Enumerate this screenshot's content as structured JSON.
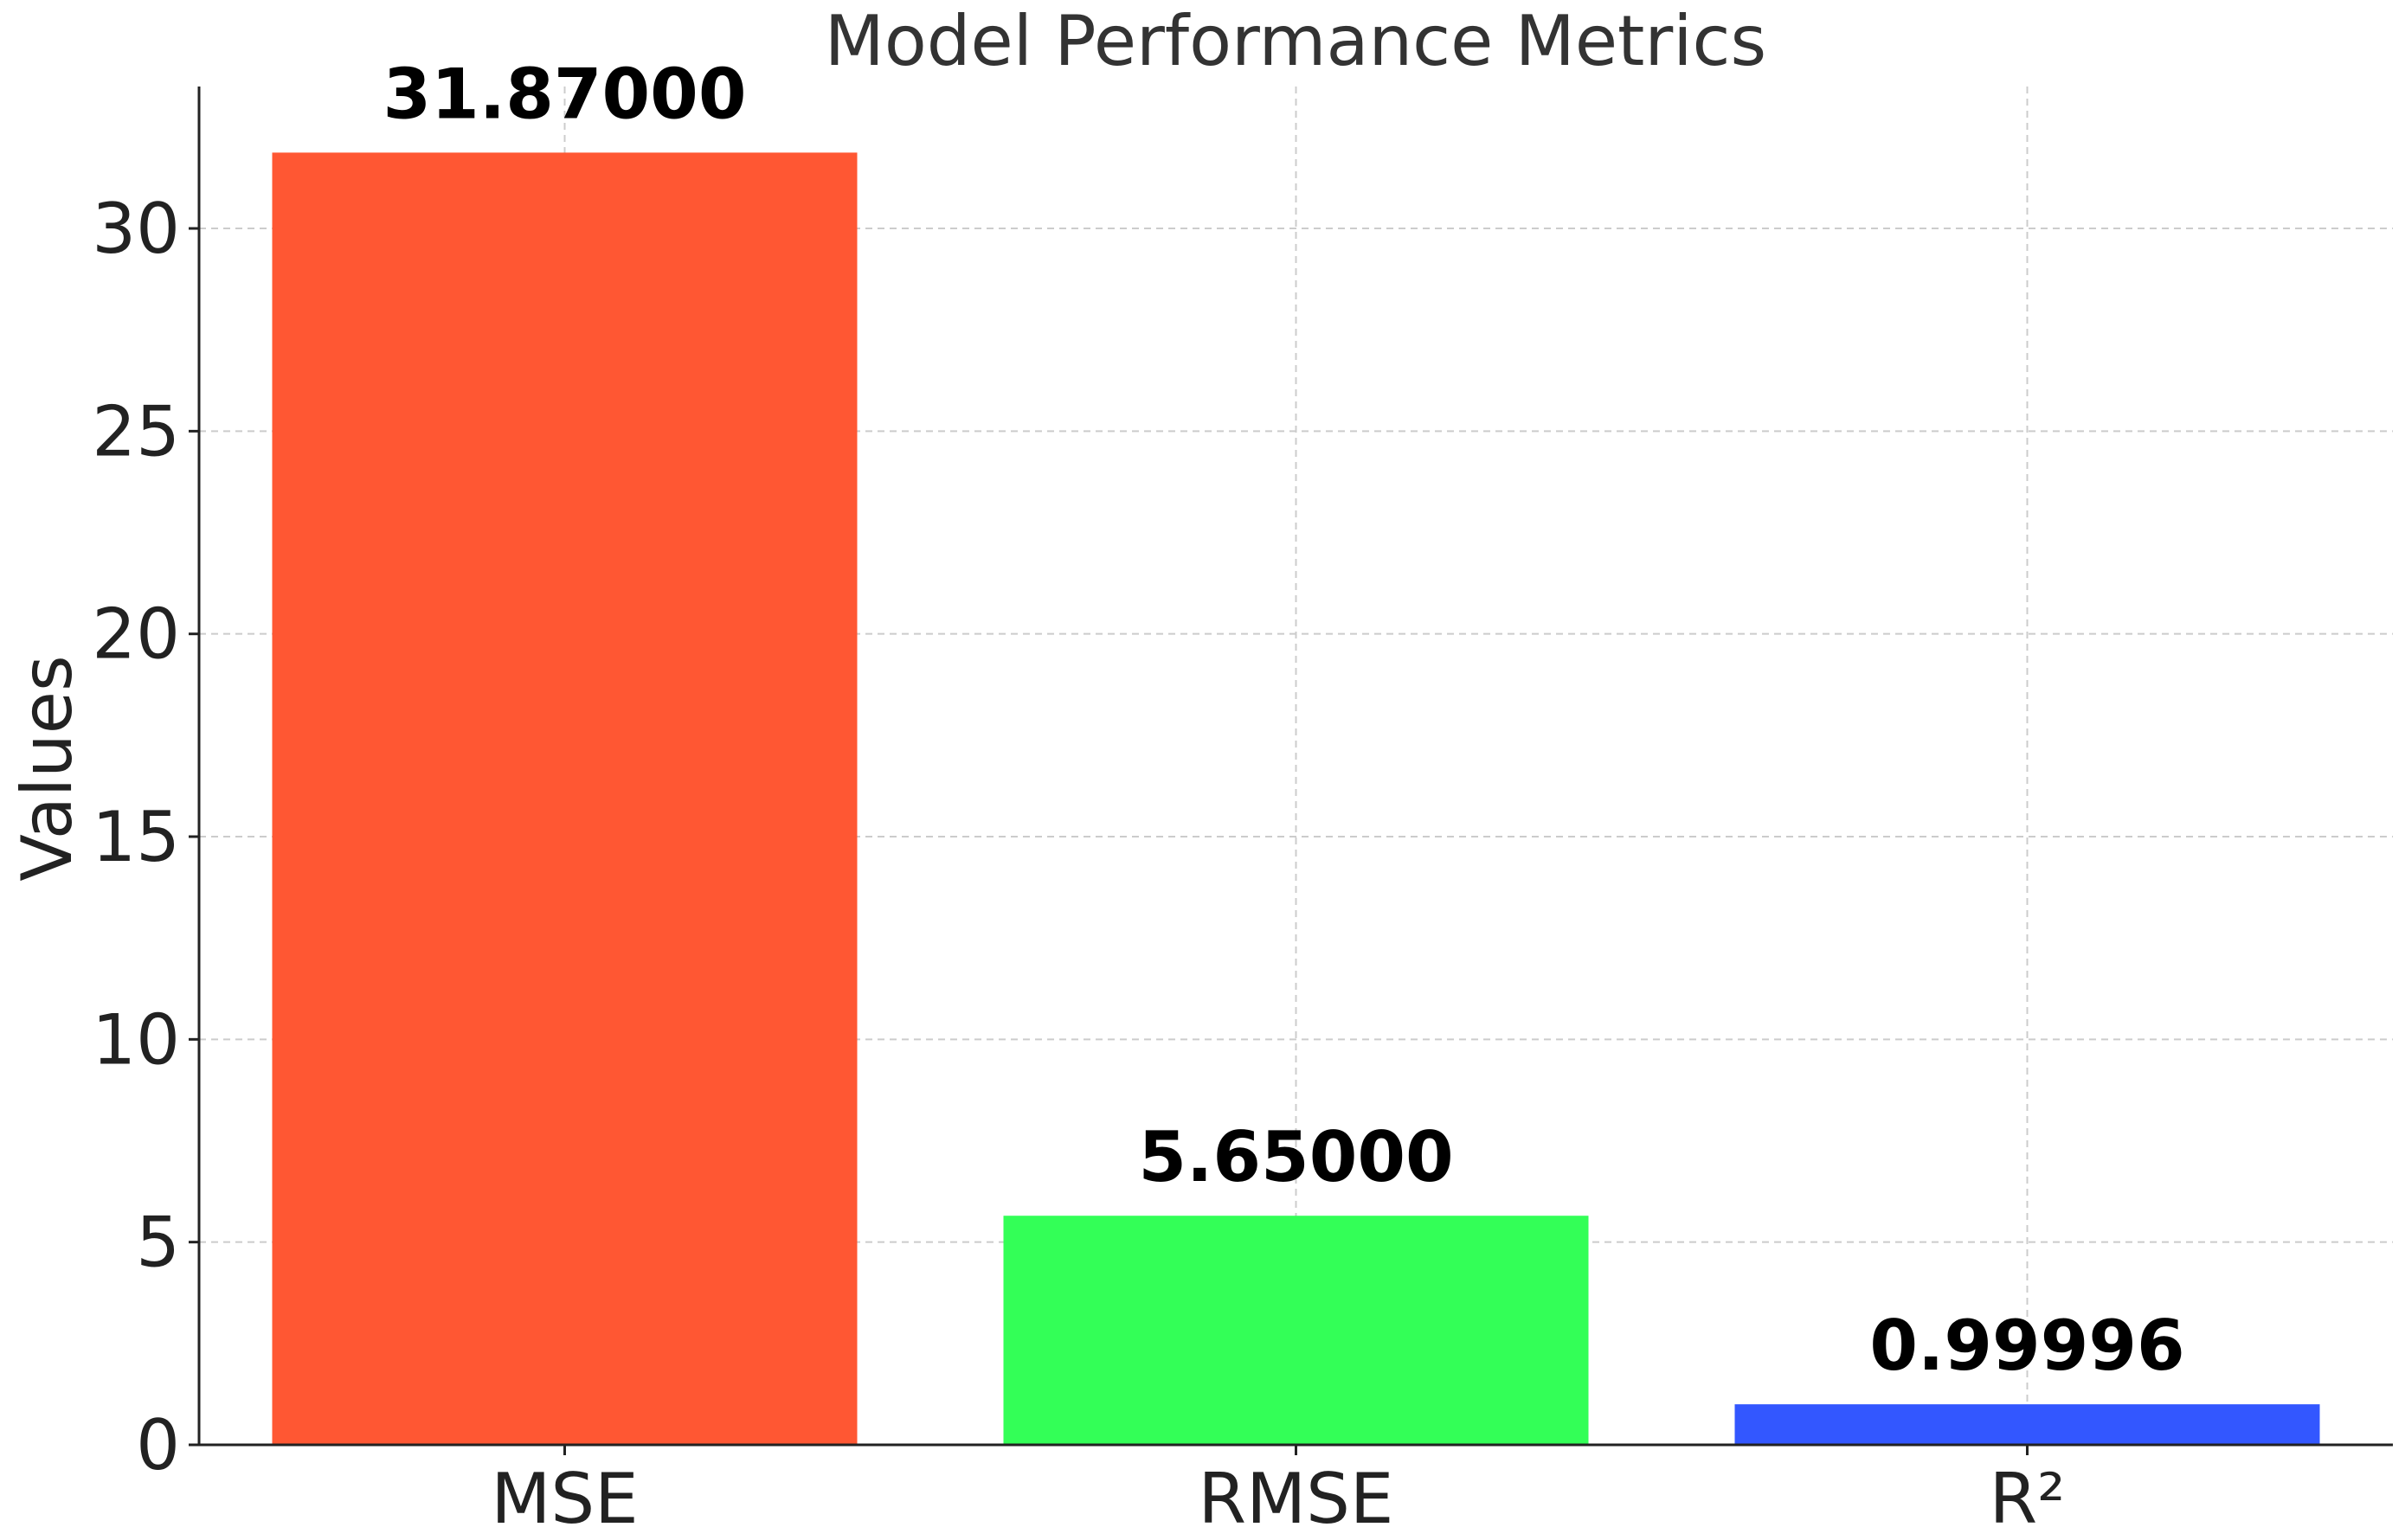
{
  "chart_data": {
    "type": "bar",
    "title": "Model Performance Metrics",
    "xlabel": "",
    "ylabel": "Values",
    "categories": [
      "MSE",
      "RMSE",
      "R²"
    ],
    "values": [
      31.87,
      5.65,
      0.99996
    ],
    "data_labels": [
      "31.87000",
      "5.65000",
      "0.99996"
    ],
    "colors": [
      "#ff5733",
      "#33ff57",
      "#3357ff"
    ],
    "ylim": [
      0,
      33.5
    ],
    "yticks": [
      0,
      5,
      10,
      15,
      20,
      25,
      30
    ],
    "grid": true,
    "legend": "none"
  }
}
